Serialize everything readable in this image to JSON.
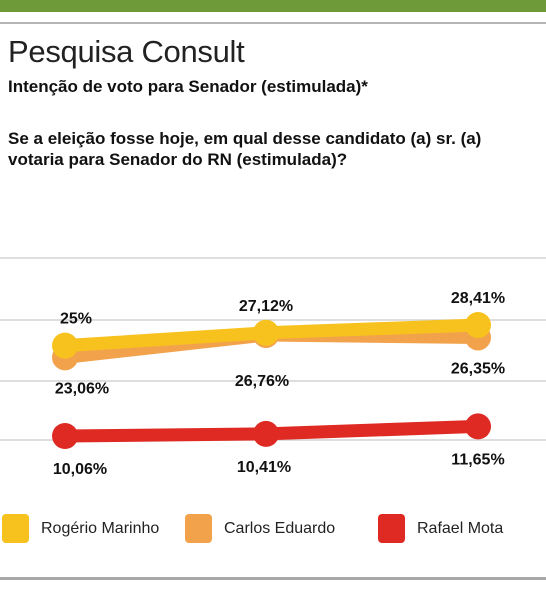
{
  "header": {
    "title": "Pesquisa Consult",
    "subtitle": "Intenção de voto para Senador (estimulada)*",
    "question": "Se a eleição fosse hoje, em qual desse candidato (a) sr. (a) votaria para Senador do RN (estimulada)?"
  },
  "colors": {
    "brand_bar": "#6e9a3a",
    "rogerio": "#f7c21e",
    "carlos": "#f2a24a",
    "rafael": "#de2a22"
  },
  "chart_data": {
    "type": "line",
    "categories": [
      "",
      "",
      ""
    ],
    "ylim": [
      0,
      35
    ],
    "grid": true,
    "legend_position": "bottom",
    "series": [
      {
        "name": "Rogério Marinho",
        "values": [
          25,
          27.12,
          28.41
        ],
        "labels": [
          "25%",
          "27,12%",
          "28,41%"
        ],
        "color": "#f7c21e"
      },
      {
        "name": "Carlos Eduardo",
        "values": [
          23.06,
          26.76,
          26.35
        ],
        "labels": [
          "23,06%",
          "26,76%",
          "26,35%"
        ],
        "color": "#f2a24a"
      },
      {
        "name": "Rafael Mota",
        "values": [
          10.06,
          10.41,
          11.65
        ],
        "labels": [
          "10,06%",
          "10,41%",
          "11,65%"
        ],
        "color": "#de2a22"
      }
    ]
  }
}
